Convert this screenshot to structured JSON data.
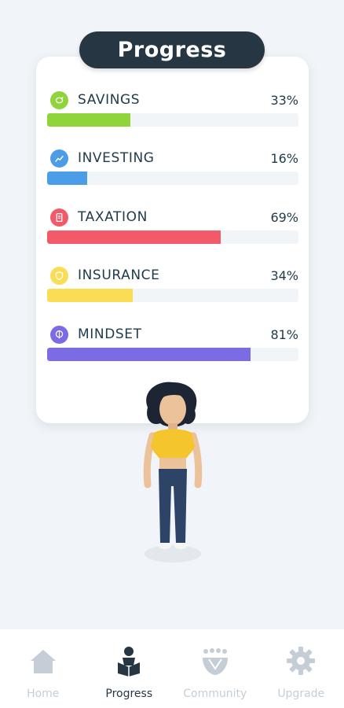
{
  "header": {
    "title": "Progress"
  },
  "metrics": [
    {
      "label": "SAVINGS",
      "value": "33%",
      "percent": 33,
      "color": "#8ed43a",
      "icon": "piggy-bank-icon"
    },
    {
      "label": "INVESTING",
      "value": "16%",
      "percent": 16,
      "color": "#4a9de6",
      "icon": "chart-icon"
    },
    {
      "label": "TAXATION",
      "value": "69%",
      "percent": 69,
      "color": "#f25a6a",
      "icon": "receipt-icon"
    },
    {
      "label": "INSURANCE",
      "value": "34%",
      "percent": 34,
      "color": "#fbdc55",
      "icon": "shield-icon"
    },
    {
      "label": "MINDSET",
      "value": "81%",
      "percent": 81,
      "color": "#7b6ce6",
      "icon": "brain-icon"
    }
  ],
  "nav": {
    "items": [
      {
        "label": "Home",
        "icon": "home-icon",
        "active": false
      },
      {
        "label": "Progress",
        "icon": "reader-icon",
        "active": true
      },
      {
        "label": "Community",
        "icon": "community-icon",
        "active": false
      },
      {
        "label": "Upgrade",
        "icon": "gear-icon",
        "active": false
      }
    ]
  }
}
